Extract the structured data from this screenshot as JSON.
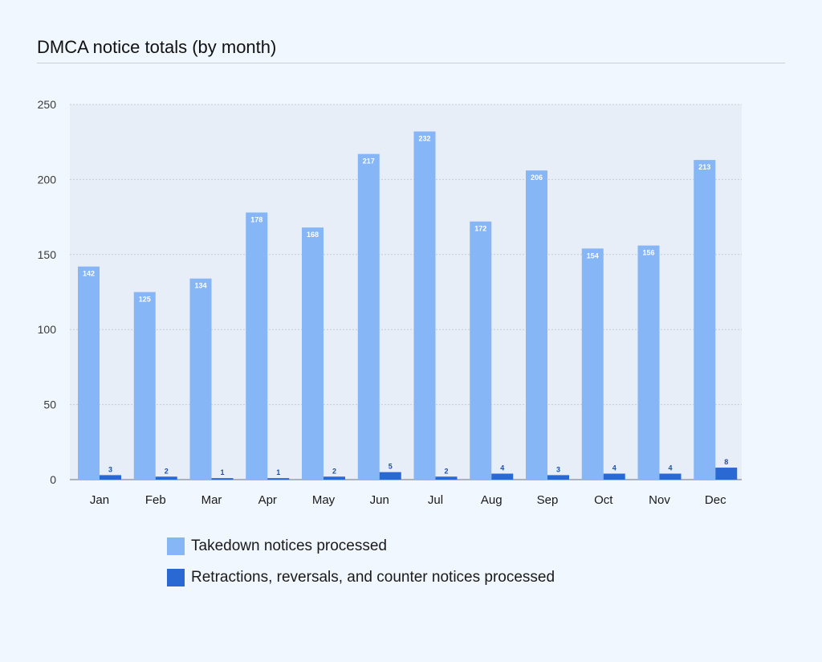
{
  "title": "DMCA notice totals (by month)",
  "chart_data": {
    "type": "bar",
    "categories": [
      "Jan",
      "Feb",
      "Mar",
      "Apr",
      "May",
      "Jun",
      "Jul",
      "Aug",
      "Sep",
      "Oct",
      "Nov",
      "Dec"
    ],
    "series": [
      {
        "name": "Takedown notices processed",
        "color": "#86b6f6",
        "values": [
          142,
          125,
          134,
          178,
          168,
          217,
          232,
          172,
          206,
          154,
          156,
          213
        ]
      },
      {
        "name": "Retractions, reversals, and counter notices processed",
        "color": "#2a69d4",
        "values": [
          3,
          2,
          1,
          1,
          2,
          5,
          2,
          4,
          3,
          4,
          4,
          8
        ]
      }
    ],
    "yticks": [
      0,
      50,
      100,
      150,
      200,
      250
    ],
    "ylim": [
      0,
      250
    ],
    "grid": true,
    "legend": "bottom"
  }
}
